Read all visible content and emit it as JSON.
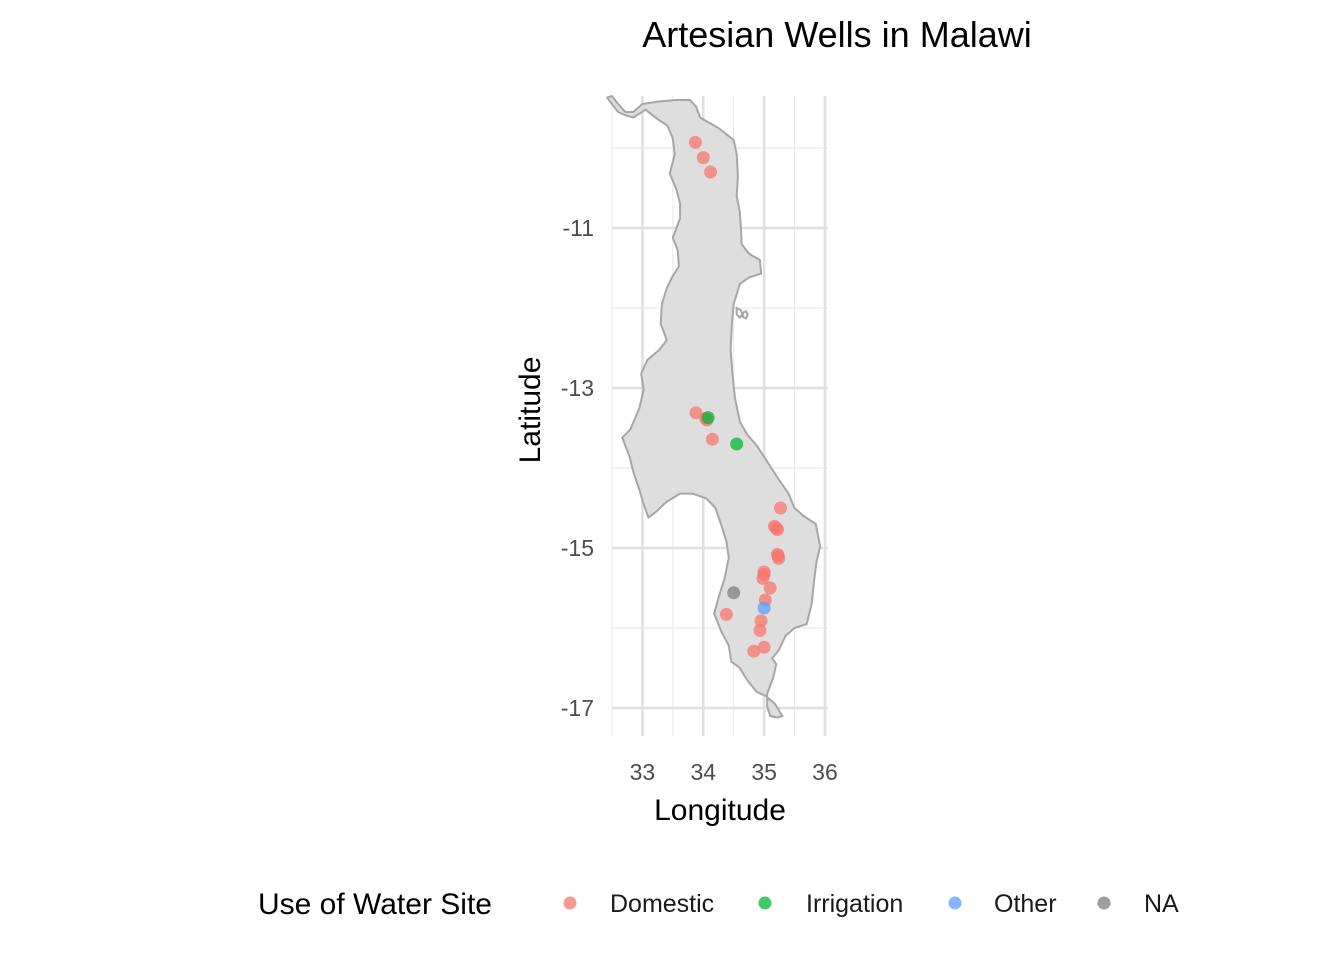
{
  "chart_data": {
    "type": "scatter",
    "title": "Artesian Wells in Malawi",
    "xlabel": "Longitude",
    "ylabel": "Latitude",
    "xlim": [
      32.5,
      36.05
    ],
    "ylim": [
      -17.35,
      -9.35
    ],
    "x_ticks": [
      33,
      34,
      35,
      36
    ],
    "x_tick_labels": [
      "33",
      "34",
      "35",
      "36"
    ],
    "y_ticks": [
      -11,
      -13,
      -15,
      -17
    ],
    "y_tick_labels": [
      "-11",
      "-13",
      "-15",
      "-17"
    ],
    "x_minor_ticks": [
      32.5,
      33.5,
      34.5,
      35.5
    ],
    "y_minor_ticks": [
      -10,
      -12,
      -14,
      -16
    ],
    "grid": true,
    "legend": {
      "title": "Use of Water Site",
      "position": "bottom",
      "entries": [
        {
          "label": "Domestic",
          "color": "#F8766D"
        },
        {
          "label": "Irrigation",
          "color": "#00BA38"
        },
        {
          "label": "Other",
          "color": "#619CFF"
        },
        {
          "label": "NA",
          "color": "#7F7F7F"
        }
      ]
    },
    "basemap": {
      "fill": "#DEDEDE",
      "stroke": "#A6A6A6",
      "outline": [
        [
          32.42,
          -9.37
        ],
        [
          32.6,
          -9.55
        ],
        [
          32.72,
          -9.59
        ],
        [
          32.85,
          -9.62
        ],
        [
          33.05,
          -9.52
        ],
        [
          33.25,
          -9.64
        ],
        [
          33.41,
          -9.72
        ],
        [
          33.5,
          -9.88
        ],
        [
          33.53,
          -10.08
        ],
        [
          33.45,
          -10.32
        ],
        [
          33.56,
          -10.52
        ],
        [
          33.62,
          -10.7
        ],
        [
          33.62,
          -10.88
        ],
        [
          33.5,
          -11.12
        ],
        [
          33.58,
          -11.28
        ],
        [
          33.6,
          -11.48
        ],
        [
          33.5,
          -11.6
        ],
        [
          33.4,
          -11.75
        ],
        [
          33.32,
          -11.95
        ],
        [
          33.3,
          -12.2
        ],
        [
          33.4,
          -12.4
        ],
        [
          33.28,
          -12.52
        ],
        [
          33.08,
          -12.65
        ],
        [
          32.98,
          -12.82
        ],
        [
          33.02,
          -13.02
        ],
        [
          32.95,
          -13.25
        ],
        [
          32.8,
          -13.52
        ],
        [
          32.67,
          -13.62
        ],
        [
          32.79,
          -13.86
        ],
        [
          32.85,
          -14.05
        ],
        [
          32.94,
          -14.25
        ],
        [
          33.02,
          -14.45
        ],
        [
          33.1,
          -14.62
        ],
        [
          33.22,
          -14.55
        ],
        [
          33.4,
          -14.42
        ],
        [
          33.62,
          -14.32
        ],
        [
          33.82,
          -14.32
        ],
        [
          34.05,
          -14.38
        ],
        [
          34.2,
          -14.5
        ],
        [
          34.3,
          -14.72
        ],
        [
          34.38,
          -14.92
        ],
        [
          34.42,
          -15.12
        ],
        [
          34.35,
          -15.38
        ],
        [
          34.25,
          -15.62
        ],
        [
          34.18,
          -15.82
        ],
        [
          34.3,
          -16.05
        ],
        [
          34.42,
          -16.22
        ],
        [
          34.46,
          -16.42
        ],
        [
          34.6,
          -16.5
        ],
        [
          34.72,
          -16.65
        ],
        [
          34.88,
          -16.8
        ],
        [
          35.03,
          -16.85
        ],
        [
          35.18,
          -16.95
        ],
        [
          35.3,
          -17.1
        ],
        [
          35.22,
          -17.12
        ],
        [
          35.1,
          -17.1
        ],
        [
          35.05,
          -16.98
        ],
        [
          35.05,
          -16.82
        ],
        [
          35.15,
          -16.62
        ],
        [
          35.2,
          -16.45
        ],
        [
          35.13,
          -16.38
        ],
        [
          35.24,
          -16.28
        ],
        [
          35.35,
          -16.1
        ],
        [
          35.5,
          -16.0
        ],
        [
          35.7,
          -15.95
        ],
        [
          35.78,
          -15.7
        ],
        [
          35.82,
          -15.42
        ],
        [
          35.86,
          -15.18
        ],
        [
          35.92,
          -14.98
        ],
        [
          35.85,
          -14.7
        ],
        [
          35.65,
          -14.6
        ],
        [
          35.5,
          -14.5
        ],
        [
          35.4,
          -14.32
        ],
        [
          35.22,
          -14.12
        ],
        [
          35.05,
          -13.92
        ],
        [
          34.88,
          -13.72
        ],
        [
          34.72,
          -13.58
        ],
        [
          34.6,
          -13.42
        ],
        [
          34.52,
          -13.12
        ],
        [
          34.48,
          -12.82
        ],
        [
          34.45,
          -12.52
        ],
        [
          34.47,
          -12.2
        ],
        [
          34.5,
          -11.95
        ],
        [
          34.6,
          -11.7
        ],
        [
          34.75,
          -11.62
        ],
        [
          34.95,
          -11.57
        ],
        [
          34.93,
          -11.4
        ],
        [
          34.75,
          -11.32
        ],
        [
          34.63,
          -11.2
        ],
        [
          34.62,
          -11.02
        ],
        [
          34.6,
          -10.8
        ],
        [
          34.55,
          -10.6
        ],
        [
          34.57,
          -10.35
        ],
        [
          34.55,
          -10.08
        ],
        [
          34.5,
          -9.9
        ],
        [
          34.25,
          -9.75
        ],
        [
          33.95,
          -9.62
        ],
        [
          33.88,
          -9.48
        ],
        [
          33.78,
          -9.4
        ],
        [
          33.55,
          -9.4
        ],
        [
          33.25,
          -9.42
        ],
        [
          33.0,
          -9.45
        ],
        [
          32.85,
          -9.55
        ],
        [
          32.72,
          -9.55
        ],
        [
          32.6,
          -9.45
        ],
        [
          32.5,
          -9.35
        ]
      ],
      "islands": [
        [
          [
            34.55,
            -12.0
          ],
          [
            34.62,
            -12.03
          ],
          [
            34.64,
            -12.08
          ],
          [
            34.6,
            -12.12
          ],
          [
            34.55,
            -12.08
          ]
        ],
        [
          [
            34.65,
            -12.06
          ],
          [
            34.7,
            -12.04
          ],
          [
            34.73,
            -12.08
          ],
          [
            34.7,
            -12.13
          ],
          [
            34.65,
            -12.11
          ]
        ]
      ]
    },
    "series": [
      {
        "name": "Domestic",
        "color": "#F8766D",
        "points": [
          [
            33.87,
            -9.93
          ],
          [
            34.0,
            -10.12
          ],
          [
            34.12,
            -10.3
          ],
          [
            33.88,
            -13.31
          ],
          [
            34.06,
            -13.4
          ],
          [
            34.04,
            -13.38
          ],
          [
            34.15,
            -13.64
          ],
          [
            35.27,
            -14.5
          ],
          [
            35.17,
            -14.73
          ],
          [
            35.22,
            -14.77
          ],
          [
            35.2,
            -14.75
          ],
          [
            35.22,
            -15.08
          ],
          [
            35.24,
            -15.13
          ],
          [
            35.23,
            -15.1
          ],
          [
            35.0,
            -15.3
          ],
          [
            35.0,
            -15.33
          ],
          [
            34.98,
            -15.38
          ],
          [
            35.1,
            -15.5
          ],
          [
            35.02,
            -15.65
          ],
          [
            34.38,
            -15.83
          ],
          [
            34.95,
            -15.91
          ],
          [
            34.93,
            -16.03
          ],
          [
            35.0,
            -16.24
          ],
          [
            34.83,
            -16.29
          ]
        ]
      },
      {
        "name": "Irrigation",
        "color": "#00BA38",
        "points": [
          [
            34.08,
            -13.37
          ],
          [
            34.55,
            -13.7
          ]
        ]
      },
      {
        "name": "Other",
        "color": "#619CFF",
        "points": [
          [
            35.0,
            -15.75
          ]
        ]
      },
      {
        "name": "NA",
        "color": "#7F7F7F",
        "points": [
          [
            34.5,
            -15.56
          ]
        ]
      }
    ]
  }
}
